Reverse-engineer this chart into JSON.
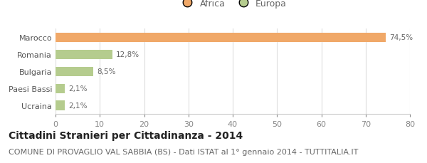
{
  "categories": [
    "Ucraina",
    "Paesi Bassi",
    "Bulgaria",
    "Romania",
    "Marocco"
  ],
  "values": [
    2.1,
    2.1,
    8.5,
    12.8,
    74.5
  ],
  "labels": [
    "2,1%",
    "2,1%",
    "8,5%",
    "12,8%",
    "74,5%"
  ],
  "colors": [
    "#b5cc8e",
    "#b5cc8e",
    "#b5cc8e",
    "#b5cc8e",
    "#f0a868"
  ],
  "legend_items": [
    {
      "label": "Africa",
      "color": "#f0a868"
    },
    {
      "label": "Europa",
      "color": "#b5cc8e"
    }
  ],
  "xlim": [
    0,
    80
  ],
  "xticks": [
    0,
    10,
    20,
    30,
    40,
    50,
    60,
    70,
    80
  ],
  "title": "Cittadini Stranieri per Cittadinanza - 2014",
  "subtitle": "COMUNE DI PROVAGLIO VAL SABBIA (BS) - Dati ISTAT al 1° gennaio 2014 - TUTTITALIA.IT",
  "background_color": "#ffffff",
  "bar_height": 0.55,
  "title_fontsize": 10,
  "subtitle_fontsize": 8,
  "label_fontsize": 7.5,
  "tick_fontsize": 8,
  "legend_fontsize": 9
}
